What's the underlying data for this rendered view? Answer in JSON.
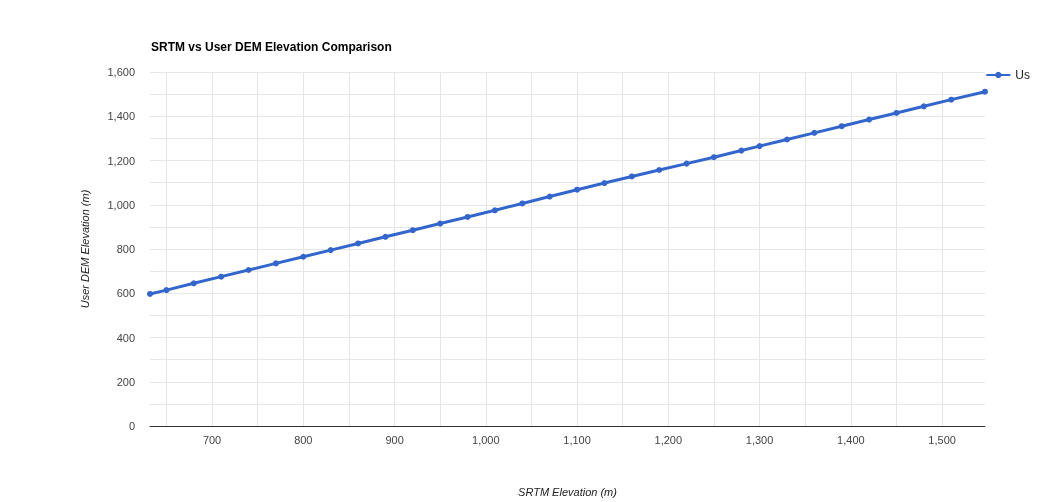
{
  "chart_data": {
    "type": "line",
    "title": "SRTM vs User DEM Elevation Comparison",
    "xlabel": "SRTM Elevation (m)",
    "ylabel": "User DEM Elevation (m)",
    "x": [
      632,
      650,
      680,
      710,
      740,
      770,
      800,
      830,
      860,
      890,
      920,
      950,
      980,
      1010,
      1040,
      1070,
      1100,
      1130,
      1160,
      1190,
      1220,
      1250,
      1280,
      1300,
      1330,
      1360,
      1390,
      1420,
      1450,
      1480,
      1510,
      1547
    ],
    "series": [
      {
        "name": "Us",
        "color": "#3366cc",
        "values": [
          597,
          614,
          645,
          675,
          705,
          735,
          765,
          795,
          825,
          855,
          885,
          915,
          945,
          975,
          1006,
          1037,
          1068,
          1098,
          1128,
          1157,
          1186,
          1215,
          1245,
          1265,
          1295,
          1325,
          1355,
          1385,
          1415,
          1445,
          1475,
          1511
        ]
      }
    ],
    "xlim": [
      632,
      1547
    ],
    "xticks": [
      {
        "value": 650,
        "label": null
      },
      {
        "value": 700,
        "label": "700"
      },
      {
        "value": 750,
        "label": null
      },
      {
        "value": 800,
        "label": "800"
      },
      {
        "value": 850,
        "label": null
      },
      {
        "value": 900,
        "label": "900"
      },
      {
        "value": 950,
        "label": null
      },
      {
        "value": 1000,
        "label": "1,000"
      },
      {
        "value": 1050,
        "label": null
      },
      {
        "value": 1100,
        "label": "1,100"
      },
      {
        "value": 1150,
        "label": null
      },
      {
        "value": 1200,
        "label": "1,200"
      },
      {
        "value": 1250,
        "label": null
      },
      {
        "value": 1300,
        "label": "1,300"
      },
      {
        "value": 1350,
        "label": null
      },
      {
        "value": 1400,
        "label": "1,400"
      },
      {
        "value": 1450,
        "label": null
      },
      {
        "value": 1500,
        "label": "1,500"
      }
    ],
    "ylim": [
      0,
      1600
    ],
    "yticks": [
      0,
      {
        "value": 100,
        "label": null
      },
      200,
      {
        "value": 300,
        "label": null
      },
      400,
      {
        "value": 500,
        "label": null
      },
      600,
      {
        "value": 700,
        "label": null
      },
      800,
      {
        "value": 900,
        "label": null
      },
      {
        "value": 1000,
        "label": "1,000"
      },
      {
        "value": 1100,
        "label": null
      },
      {
        "value": 1200,
        "label": "1,200"
      },
      {
        "value": 1300,
        "label": null
      },
      {
        "value": 1400,
        "label": "1,400"
      },
      {
        "value": 1500,
        "label": null
      },
      {
        "value": 1600,
        "label": "1,600"
      }
    ],
    "grid": true,
    "legend": "top right",
    "marker": "circle",
    "line_style": "solid"
  }
}
